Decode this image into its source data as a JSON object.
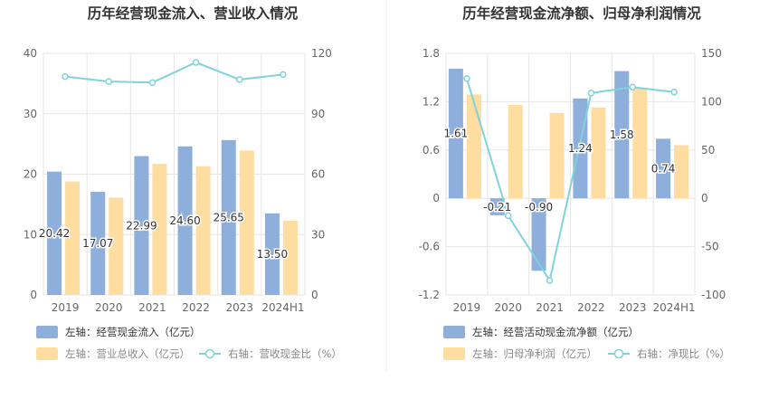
{
  "colors": {
    "bar_primary": "#8EAEDC",
    "bar_secondary": "#FFDCA0",
    "line": "#7FD3DA",
    "axis_text": "#666666",
    "grid": "#E6E6E6",
    "title": "#333333",
    "divider": "#EEEEEE"
  },
  "chart_data": [
    {
      "type": "bar",
      "title": "历年经营现金流入、营业收入情况",
      "categories": [
        "2019",
        "2020",
        "2021",
        "2022",
        "2023",
        "2024H1"
      ],
      "left_axis": {
        "ticks": [
          "0",
          "10",
          "20",
          "30",
          "40"
        ],
        "ylim": [
          0,
          40
        ]
      },
      "right_axis": {
        "ticks": [
          "0",
          "30",
          "60",
          "90",
          "120"
        ],
        "ylim": [
          0,
          120
        ]
      },
      "series": [
        {
          "name": "左轴：经营现金流入（亿元）",
          "kind": "bar",
          "axis": "left",
          "values": [
            20.42,
            17.07,
            22.99,
            24.6,
            25.65,
            13.5
          ],
          "labels": [
            "20.42",
            "17.07",
            "22.99",
            "24.60",
            "25.65",
            "13.50"
          ]
        },
        {
          "name": "左轴：营业总收入（亿元）",
          "kind": "bar",
          "axis": "left",
          "values": [
            18.8,
            16.1,
            21.7,
            21.3,
            23.9,
            12.3
          ]
        },
        {
          "name": "右轴：营收现金比（%）",
          "kind": "line",
          "axis": "right",
          "values": [
            108.5,
            106,
            105.5,
            115.5,
            107,
            109.5
          ]
        }
      ]
    },
    {
      "type": "bar",
      "title": "历年经营现金流净额、归母净利润情况",
      "categories": [
        "2019",
        "2020",
        "2021",
        "2022",
        "2023",
        "2024H1"
      ],
      "left_axis": {
        "ticks": [
          "-1.2",
          "-0.6",
          "0",
          "0.6",
          "1.2",
          "1.8"
        ],
        "ylim": [
          -1.2,
          1.8
        ]
      },
      "right_axis": {
        "ticks": [
          "-100",
          "-50",
          "0",
          "50",
          "100",
          "150"
        ],
        "ylim": [
          -100,
          150
        ]
      },
      "series": [
        {
          "name": "左轴：经营活动现金流净额（亿元）",
          "kind": "bar",
          "axis": "left",
          "values": [
            1.61,
            -0.21,
            -0.9,
            1.24,
            1.58,
            0.74
          ],
          "labels": [
            "1.61",
            "-0.21",
            "-0.90",
            "1.24",
            "1.58",
            "0.74"
          ]
        },
        {
          "name": "左轴：归母净利润（亿元）",
          "kind": "bar",
          "axis": "left",
          "values": [
            1.29,
            1.16,
            1.06,
            1.13,
            1.36,
            0.66
          ]
        },
        {
          "name": "右轴：净现比（%）",
          "kind": "line",
          "axis": "right",
          "values": [
            124,
            -18,
            -85,
            109,
            115,
            110
          ]
        }
      ]
    }
  ]
}
